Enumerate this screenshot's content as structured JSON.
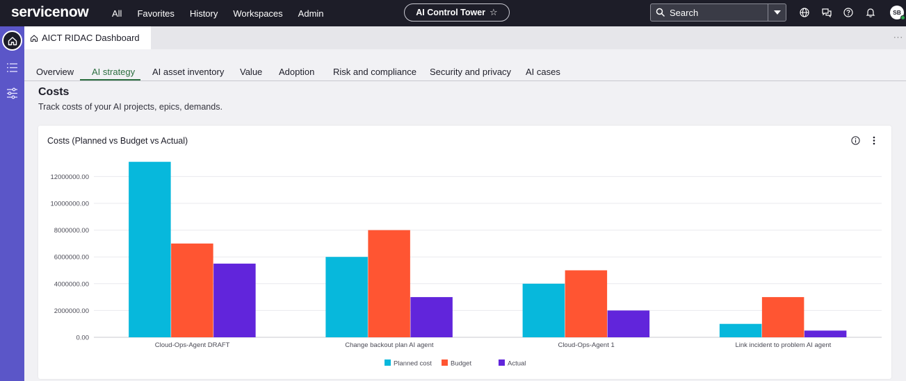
{
  "brand": {
    "logo_text": "servicenow"
  },
  "topnav": {
    "links": [
      "All",
      "Favorites",
      "History",
      "Workspaces",
      "Admin"
    ],
    "app_pill": "AI Control Tower",
    "search_label": "Search",
    "avatar_initials": "SB"
  },
  "doc_tab": {
    "title": "AICT RIDAC Dashboard"
  },
  "subtabs": [
    "Overview",
    "AI strategy",
    "AI asset inventory",
    "Value",
    "Adoption",
    "Risk and compliance",
    "Security and privacy",
    "AI cases"
  ],
  "active_subtab": "AI strategy",
  "section": {
    "title": "Costs",
    "subtitle": "Track costs of your AI projects, epics, demands."
  },
  "card": {
    "title": "Costs (Planned vs Budget vs Actual)"
  },
  "chart_data": {
    "type": "bar",
    "categories": [
      "Cloud-Ops-Agent DRAFT",
      "Change backout plan AI agent",
      "Cloud-Ops-Agent 1",
      "Link incident to problem AI agent"
    ],
    "series": [
      {
        "name": "Planned cost",
        "color": "#07b8dc",
        "values": [
          13100000,
          6000000,
          4000000,
          1000000
        ]
      },
      {
        "name": "Budget",
        "color": "#ff5532",
        "values": [
          7000000,
          8000000,
          5000000,
          3000000
        ]
      },
      {
        "name": "Actual",
        "color": "#6125db",
        "values": [
          5500000,
          3000000,
          2000000,
          500000
        ]
      }
    ],
    "yticks": [
      "0.00",
      "2000000.00",
      "4000000.00",
      "6000000.00",
      "8000000.00",
      "10000000.00",
      "12000000.00"
    ],
    "ylim": [
      0,
      13600000
    ],
    "grid": true,
    "legend_position": "bottom"
  }
}
